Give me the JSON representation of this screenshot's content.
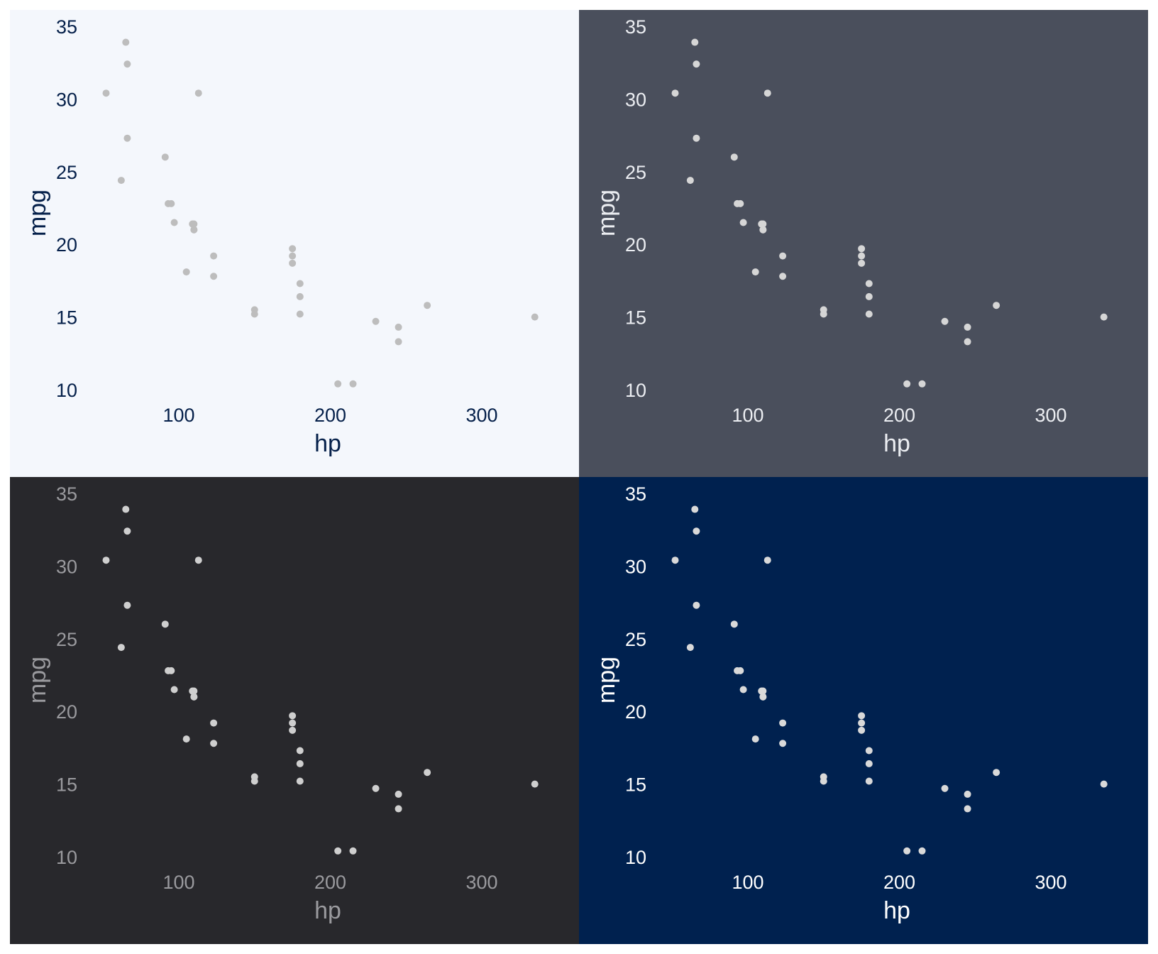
{
  "chart_data": [
    {
      "type": "scatter",
      "panel": "top-left",
      "xlabel": "hp",
      "ylabel": "mpg",
      "xticks": [
        100,
        200,
        300
      ],
      "yticks": [
        10,
        15,
        20,
        25,
        30,
        35
      ],
      "xlim": [
        40,
        345
      ],
      "ylim": [
        8,
        36
      ],
      "colors": {
        "background": "#f4f7fc",
        "text": "#05204a",
        "point": "#bdbdbd"
      },
      "x": [
        110,
        110,
        93,
        110,
        175,
        105,
        245,
        62,
        95,
        123,
        123,
        180,
        180,
        180,
        205,
        215,
        230,
        66,
        52,
        65,
        97,
        150,
        150,
        245,
        175,
        66,
        91,
        113,
        264,
        175,
        335,
        109
      ],
      "y": [
        21.0,
        21.0,
        22.8,
        21.4,
        18.7,
        18.1,
        14.3,
        24.4,
        22.8,
        19.2,
        17.8,
        16.4,
        17.3,
        15.2,
        10.4,
        10.4,
        14.7,
        32.4,
        30.4,
        33.9,
        21.5,
        15.5,
        15.2,
        13.3,
        19.2,
        27.3,
        26.0,
        30.4,
        15.8,
        19.7,
        15.0,
        21.4
      ]
    },
    {
      "type": "scatter",
      "panel": "top-right",
      "xlabel": "hp",
      "ylabel": "mpg",
      "xticks": [
        100,
        200,
        300
      ],
      "yticks": [
        10,
        15,
        20,
        25,
        30,
        35
      ],
      "xlim": [
        40,
        345
      ],
      "ylim": [
        8,
        36
      ],
      "colors": {
        "background": "#4a4f5c",
        "text": "#eceef2",
        "point": "#d6d6d6"
      },
      "x": [
        110,
        110,
        93,
        110,
        175,
        105,
        245,
        62,
        95,
        123,
        123,
        180,
        180,
        180,
        205,
        215,
        230,
        66,
        52,
        65,
        97,
        150,
        150,
        245,
        175,
        66,
        91,
        113,
        264,
        175,
        335,
        109
      ],
      "y": [
        21.0,
        21.0,
        22.8,
        21.4,
        18.7,
        18.1,
        14.3,
        24.4,
        22.8,
        19.2,
        17.8,
        16.4,
        17.3,
        15.2,
        10.4,
        10.4,
        14.7,
        32.4,
        30.4,
        33.9,
        21.5,
        15.5,
        15.2,
        13.3,
        19.2,
        27.3,
        26.0,
        30.4,
        15.8,
        19.7,
        15.0,
        21.4
      ]
    },
    {
      "type": "scatter",
      "panel": "bottom-left",
      "xlabel": "hp",
      "ylabel": "mpg",
      "xticks": [
        100,
        200,
        300
      ],
      "yticks": [
        10,
        15,
        20,
        25,
        30,
        35
      ],
      "xlim": [
        40,
        345
      ],
      "ylim": [
        8,
        36
      ],
      "colors": {
        "background": "#28282c",
        "text": "#9a9a9e",
        "point": "#cfcfcf"
      },
      "x": [
        110,
        110,
        93,
        110,
        175,
        105,
        245,
        62,
        95,
        123,
        123,
        180,
        180,
        180,
        205,
        215,
        230,
        66,
        52,
        65,
        97,
        150,
        150,
        245,
        175,
        66,
        91,
        113,
        264,
        175,
        335,
        109
      ],
      "y": [
        21.0,
        21.0,
        22.8,
        21.4,
        18.7,
        18.1,
        14.3,
        24.4,
        22.8,
        19.2,
        17.8,
        16.4,
        17.3,
        15.2,
        10.4,
        10.4,
        14.7,
        32.4,
        30.4,
        33.9,
        21.5,
        15.5,
        15.2,
        13.3,
        19.2,
        27.3,
        26.0,
        30.4,
        15.8,
        19.7,
        15.0,
        21.4
      ]
    },
    {
      "type": "scatter",
      "panel": "bottom-right",
      "xlabel": "hp",
      "ylabel": "mpg",
      "xticks": [
        100,
        200,
        300
      ],
      "yticks": [
        10,
        15,
        20,
        25,
        30,
        35
      ],
      "xlim": [
        40,
        345
      ],
      "ylim": [
        8,
        36
      ],
      "colors": {
        "background": "#00214f",
        "text": "#ffffff",
        "point": "#d9d9d9"
      },
      "x": [
        110,
        110,
        93,
        110,
        175,
        105,
        245,
        62,
        95,
        123,
        123,
        180,
        180,
        180,
        205,
        215,
        230,
        66,
        52,
        65,
        97,
        150,
        150,
        245,
        175,
        66,
        91,
        113,
        264,
        175,
        335,
        109
      ],
      "y": [
        21.0,
        21.0,
        22.8,
        21.4,
        18.7,
        18.1,
        14.3,
        24.4,
        22.8,
        19.2,
        17.8,
        16.4,
        17.3,
        15.2,
        10.4,
        10.4,
        14.7,
        32.4,
        30.4,
        33.9,
        21.5,
        15.5,
        15.2,
        13.3,
        19.2,
        27.3,
        26.0,
        30.4,
        15.8,
        19.7,
        15.0,
        21.4
      ]
    }
  ]
}
